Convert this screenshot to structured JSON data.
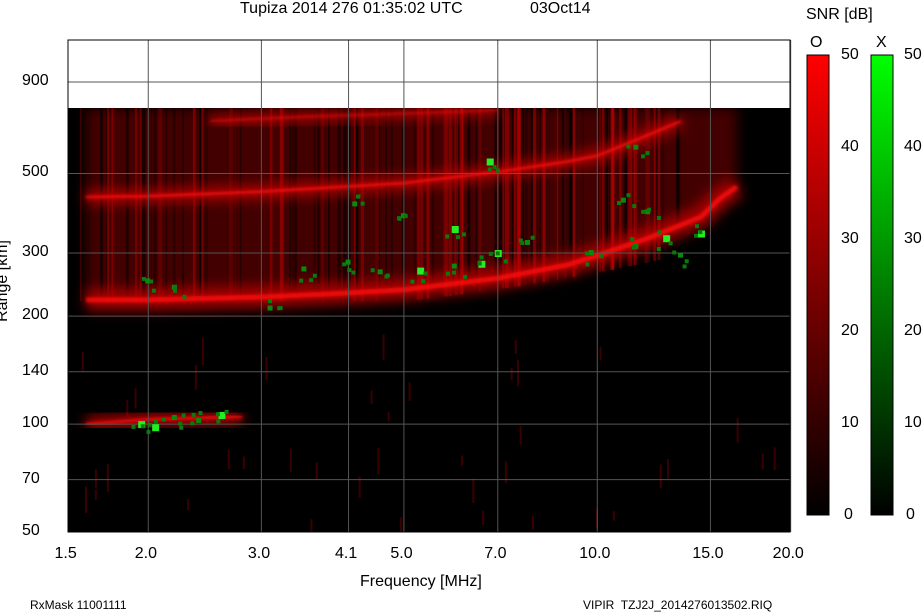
{
  "header": {
    "title": "Tupiza 2014 276 01:35:02 UTC",
    "date": "03Oct14"
  },
  "footer": {
    "rxmask": "RxMask 11001111",
    "file": "VIPIR  TZJ2J_2014276013502.RIQ"
  },
  "colorbar": {
    "title": "SNR [dB]",
    "o_label": "O",
    "x_label": "X",
    "ticks": [
      "50",
      "40",
      "30",
      "20",
      "10",
      "0"
    ],
    "range": [
      0,
      50
    ],
    "o_color": "#ff0000",
    "x_color": "#00ff00"
  },
  "chart_data": {
    "type": "heatmap",
    "title": "Tupiza 2014 276 01:35:02 UTC",
    "xlabel": "Frequency [MHz]",
    "ylabel": "Range [km]",
    "xscale": "log",
    "yscale": "log",
    "xlim": [
      1.5,
      20.0
    ],
    "ylim": [
      50,
      1180
    ],
    "data_range_max_km": 760,
    "xticks": [
      "1.5",
      "2.0",
      "3.0",
      "4.1",
      "5.0",
      "7.0",
      "10.0",
      "15.0",
      "20.0"
    ],
    "xtick_values": [
      1.5,
      2.0,
      3.0,
      4.1,
      5.0,
      7.0,
      10.0,
      15.0,
      20.0
    ],
    "yticks": [
      "900",
      "500",
      "300",
      "200",
      "140",
      "100",
      "70",
      "50"
    ],
    "ytick_values": [
      900,
      500,
      300,
      200,
      140,
      100,
      70,
      50
    ],
    "grid": true,
    "o_mode_traces": [
      {
        "name": "F-layer 1st hop",
        "points": [
          [
            1.6,
            222
          ],
          [
            2.0,
            222
          ],
          [
            3.0,
            226
          ],
          [
            4.1,
            232
          ],
          [
            5.0,
            237
          ],
          [
            7.0,
            255
          ],
          [
            9.0,
            278
          ],
          [
            10.0,
            295
          ],
          [
            12.0,
            330
          ],
          [
            14.5,
            378
          ],
          [
            15.5,
            425
          ],
          [
            16.5,
            460
          ]
        ]
      },
      {
        "name": "F-layer 2nd hop",
        "points": [
          [
            1.6,
            430
          ],
          [
            2.0,
            432
          ],
          [
            3.0,
            445
          ],
          [
            4.1,
            460
          ],
          [
            5.0,
            470
          ],
          [
            7.0,
            505
          ],
          [
            9.0,
            540
          ],
          [
            10.0,
            560
          ],
          [
            12.0,
            640
          ],
          [
            13.5,
            700
          ]
        ]
      },
      {
        "name": "F-layer 3rd hop",
        "points": [
          [
            2.5,
            700
          ],
          [
            3.5,
            720
          ],
          [
            5.0,
            735
          ],
          [
            7.0,
            750
          ]
        ]
      },
      {
        "name": "Low echo",
        "points": [
          [
            1.6,
            100
          ],
          [
            2.0,
            103
          ],
          [
            2.4,
            104
          ],
          [
            2.8,
            105
          ]
        ]
      }
    ],
    "x_mode_points": [
      [
        1.95,
        100
      ],
      [
        2.05,
        98
      ],
      [
        2.2,
        104
      ],
      [
        2.4,
        102
      ],
      [
        2.6,
        106
      ],
      [
        2.0,
        250
      ],
      [
        2.2,
        240
      ],
      [
        3.5,
        270
      ],
      [
        4.1,
        282
      ],
      [
        4.6,
        265
      ],
      [
        5.3,
        268
      ],
      [
        6.0,
        275
      ],
      [
        6.6,
        280
      ],
      [
        7.0,
        300
      ],
      [
        7.8,
        320
      ],
      [
        9.8,
        300
      ],
      [
        11.5,
        312
      ],
      [
        12.8,
        330
      ],
      [
        13.5,
        295
      ],
      [
        14.5,
        340
      ],
      [
        11.0,
        420
      ],
      [
        12.0,
        390
      ],
      [
        6.8,
        540
      ],
      [
        11.5,
        590
      ],
      [
        4.2,
        410
      ],
      [
        5.0,
        380
      ],
      [
        6.0,
        350
      ],
      [
        3.1,
        210
      ]
    ]
  }
}
